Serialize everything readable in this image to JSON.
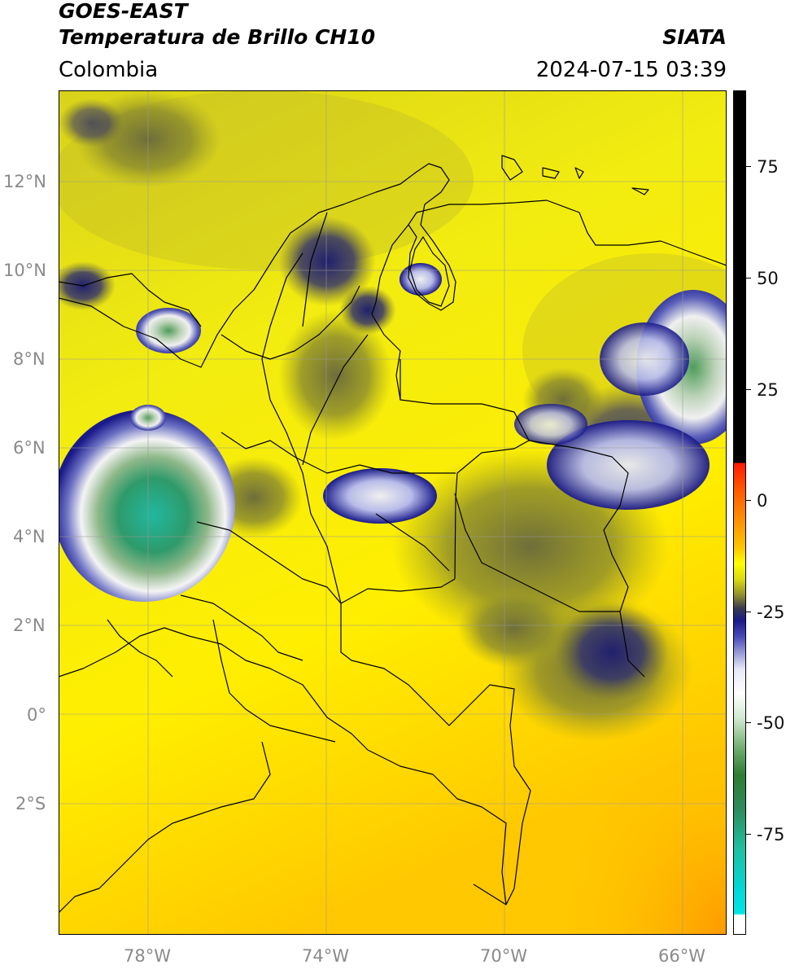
{
  "header": {
    "satellite": "GOES-EAST",
    "product": "Temperatura de Brillo CH10",
    "region": "Colombia",
    "org": "SIATA",
    "datetime": "2024-07-15 03:39"
  },
  "map": {
    "lat_labels": [
      "12°N",
      "10°N",
      "8°N",
      "6°N",
      "4°N",
      "2°N",
      "0°",
      "2°S"
    ],
    "lon_labels": [
      "78°W",
      "74°W",
      "70°W",
      "66°W"
    ],
    "lat_range": [
      -4.9,
      14.0
    ],
    "lon_range": [
      -80.0,
      -65.0
    ]
  },
  "colorbar": {
    "ticks": [
      "75",
      "50",
      "25",
      "0",
      "-25",
      "-50",
      "-75"
    ],
    "range": [
      -100,
      90
    ],
    "colors": {
      "black": "#000000",
      "red": "#ff2200",
      "orange": "#ff9900",
      "yellow": "#ffff00",
      "olive": "#7a7a22",
      "navy": "#1a1a8a",
      "white": "#ffffff",
      "green": "#2e7d32",
      "teal": "#1fbfa0",
      "cyan": "#00e5e5"
    }
  }
}
